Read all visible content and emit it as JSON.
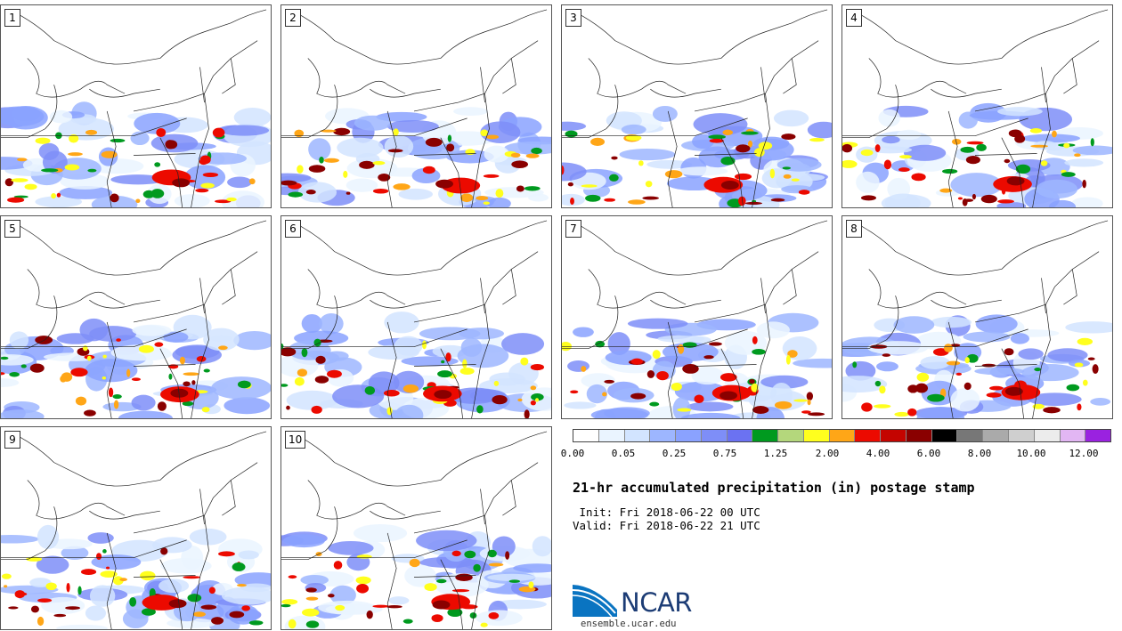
{
  "panels": [
    {
      "label": "1"
    },
    {
      "label": "2"
    },
    {
      "label": "3"
    },
    {
      "label": "4"
    },
    {
      "label": "5"
    },
    {
      "label": "6"
    },
    {
      "label": "7"
    },
    {
      "label": "8"
    },
    {
      "label": "9"
    },
    {
      "label": "10"
    }
  ],
  "colorbar": {
    "colors": [
      "#ffffff",
      "#eaf4ff",
      "#d2e4ff",
      "#9db6ff",
      "#8aa2ff",
      "#7e8ef8",
      "#6b72f2",
      "#009a1f",
      "#b4d77c",
      "#ffff1e",
      "#ffa617",
      "#ec0a00",
      "#c40400",
      "#8a0000",
      "#000000",
      "#777777",
      "#aaaaaa",
      "#cfcfcf",
      "#ececec",
      "#e2b6f3",
      "#9a22e0"
    ],
    "tick_labels": [
      "0.00",
      "0.05",
      "0.25",
      "0.75",
      "1.25",
      "2.00",
      "4.00",
      "6.00",
      "8.00",
      "10.00",
      "12.00"
    ]
  },
  "title": "21-hr accumulated precipitation (in) postage stamp",
  "init_text": " Init: Fri 2018-06-22 00 UTC",
  "valid_text": "Valid: Fri 2018-06-22 21 UTC",
  "logo": {
    "text": "NCAR",
    "site": "ensemble.ucar.edu",
    "colors": [
      "#0a74c1",
      "#1c3c75"
    ]
  }
}
